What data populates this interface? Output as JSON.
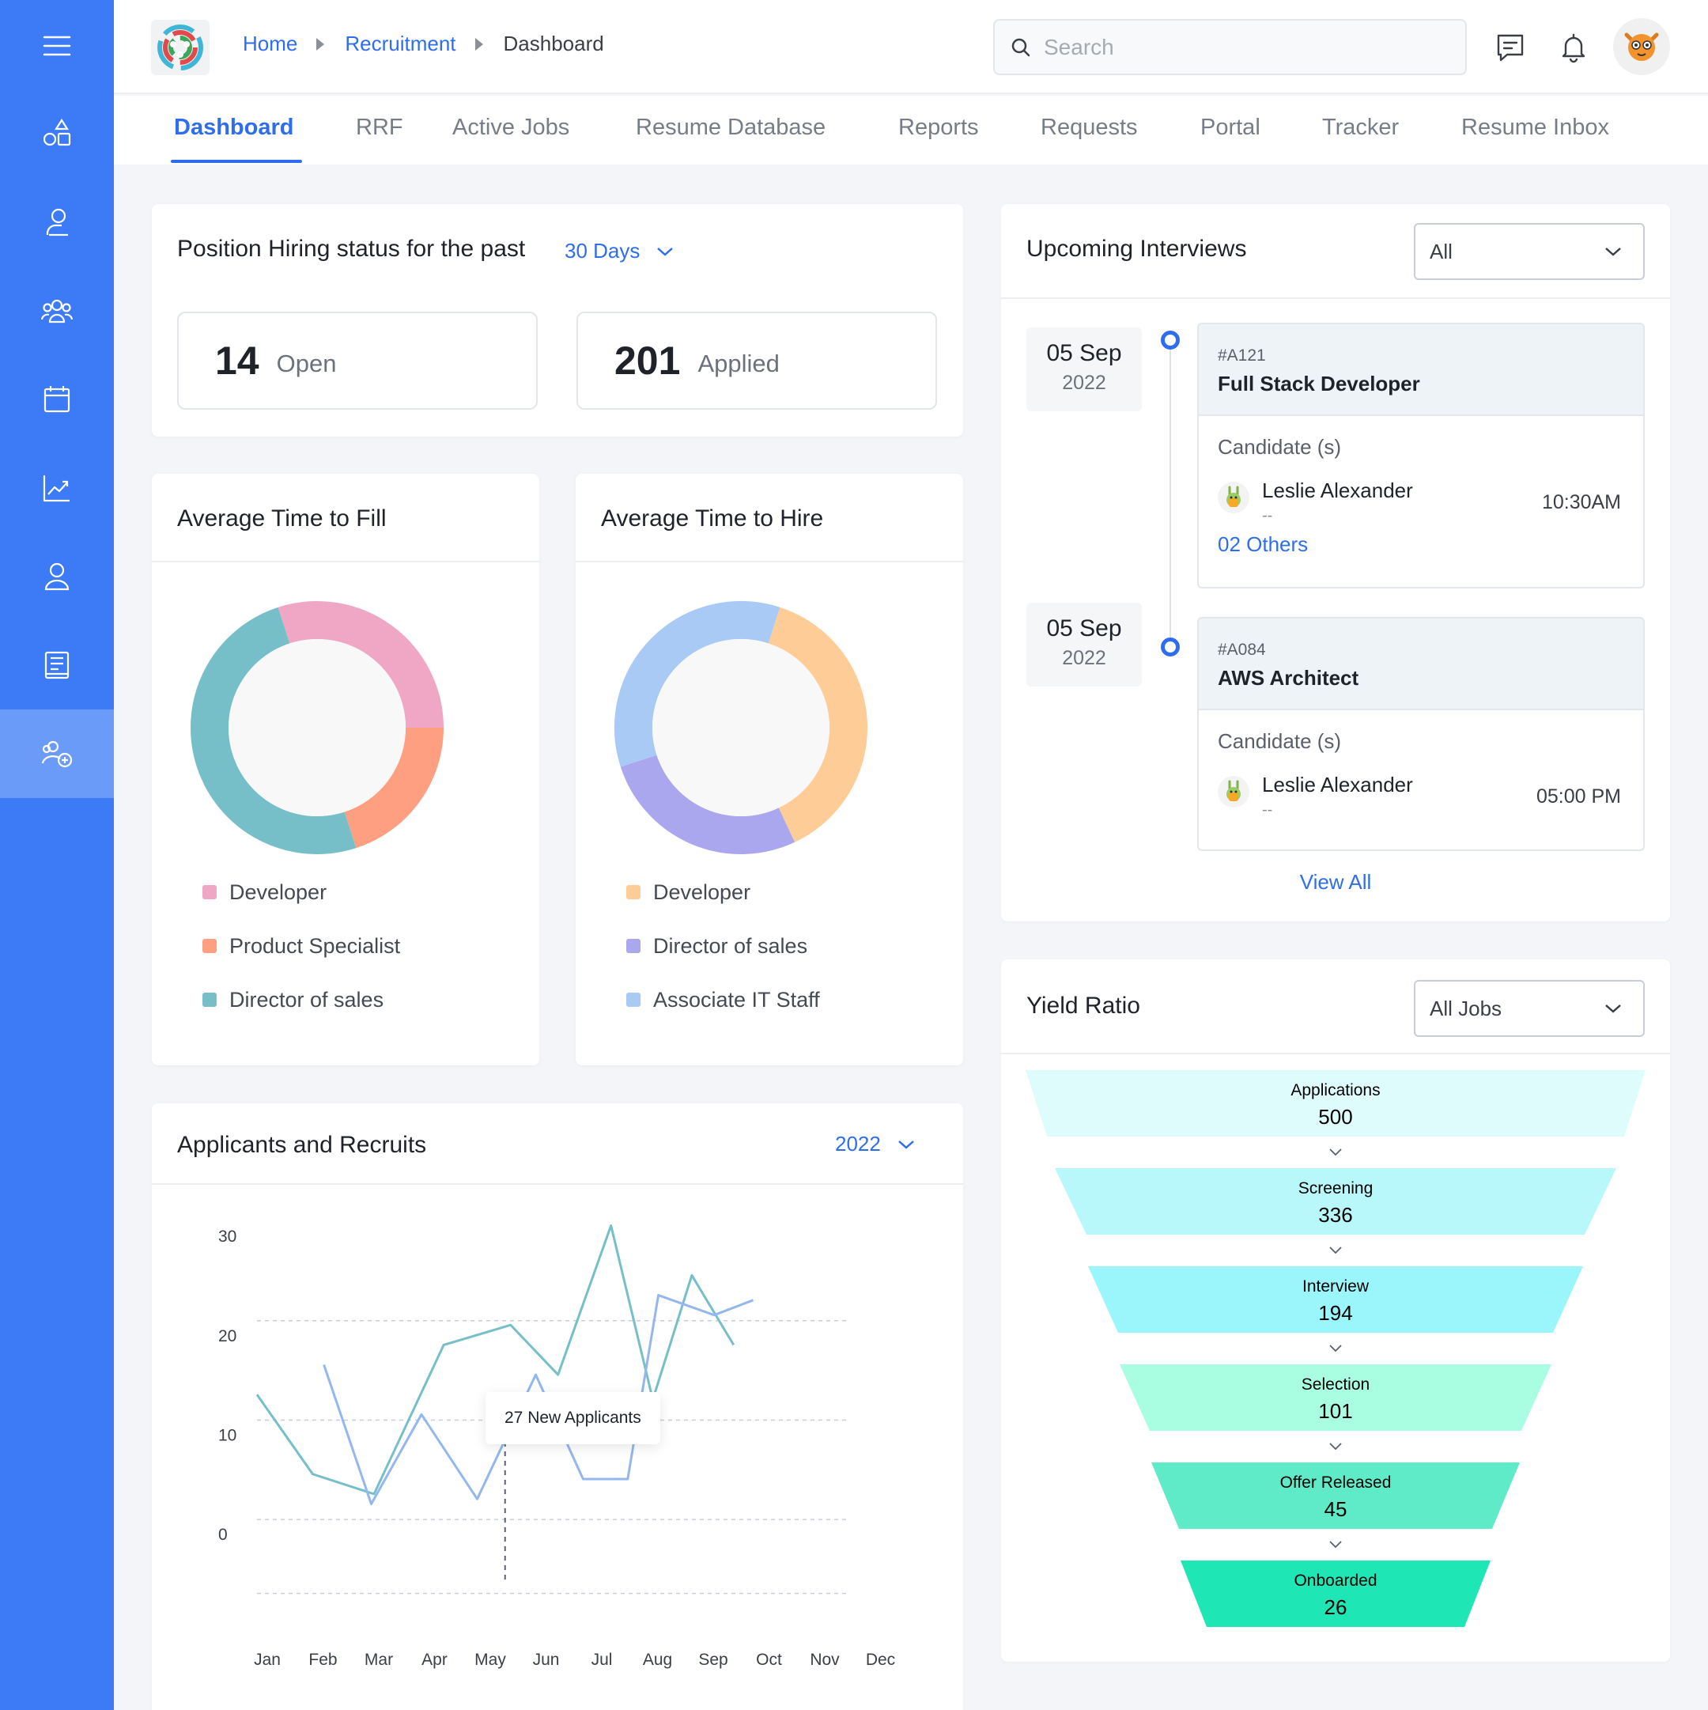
{
  "breadcrumb": [
    {
      "label": "Home"
    },
    {
      "label": "Recruitment"
    },
    {
      "label": "Dashboard"
    }
  ],
  "search": {
    "placeholder": "Search",
    "value": ""
  },
  "tabs": [
    {
      "label": "Dashboard",
      "active": true
    },
    {
      "label": "RRF"
    },
    {
      "label": "Active Jobs"
    },
    {
      "label": "Resume Database"
    },
    {
      "label": "Reports"
    },
    {
      "label": "Requests"
    },
    {
      "label": "Portal"
    },
    {
      "label": "Tracker"
    },
    {
      "label": "Resume Inbox"
    }
  ],
  "sidebar": {
    "items": [
      {
        "icon": "menu-icon"
      },
      {
        "icon": "shapes-icon"
      },
      {
        "icon": "user-icon"
      },
      {
        "icon": "users-group-icon"
      },
      {
        "icon": "calendar-icon"
      },
      {
        "icon": "chart-icon"
      },
      {
        "icon": "profile-icon"
      },
      {
        "icon": "book-icon"
      },
      {
        "icon": "add-users-icon",
        "active": true
      }
    ]
  },
  "hiring_status": {
    "title": "Position Hiring status for the past",
    "period": "30 Days",
    "open": {
      "value": "14",
      "label": "Open"
    },
    "applied": {
      "value": "201",
      "label": "Applied"
    }
  },
  "time_to_fill": {
    "title": "Average Time to Fill",
    "legend": [
      {
        "label": "Developer",
        "color": "#efa7c5"
      },
      {
        "label": "Product Specialist",
        "color": "#fd9f80"
      },
      {
        "label": "Director of sales",
        "color": "#76bfc9"
      }
    ]
  },
  "time_to_hire": {
    "title": "Average Time to Hire",
    "legend": [
      {
        "label": "Developer",
        "color": "#fecc96"
      },
      {
        "label": "Director of sales",
        "color": "#aba7ef"
      },
      {
        "label": "Associate IT Staff",
        "color": "#a9caf4"
      }
    ]
  },
  "applicants": {
    "title": "Applicants and Recruits",
    "year": "2022",
    "tooltip": "27 New Applicants"
  },
  "upcoming": {
    "title": "Upcoming Interviews",
    "filter": "All",
    "candidates_label": "Candidate (s)",
    "interviews": [
      {
        "day": "05 Sep",
        "year": "2022",
        "id": "#A121",
        "role": "Full Stack Developer",
        "candidate": "Leslie Alexander",
        "sub": "--",
        "time": "10:30AM",
        "others": "02 Others"
      },
      {
        "day": "05 Sep",
        "year": "2022",
        "id": "#A084",
        "role": "AWS Architect",
        "candidate": "Leslie Alexander",
        "sub": "--",
        "time": "05:00 PM"
      }
    ],
    "view_all": "View All"
  },
  "yield": {
    "title": "Yield Ratio",
    "filter": "All Jobs",
    "stages": [
      {
        "label": "Applications",
        "value": "500",
        "color": "#dffcfd"
      },
      {
        "label": "Screening",
        "value": "336",
        "color": "#b8f8fb"
      },
      {
        "label": "Interview",
        "value": "194",
        "color": "#9bf6fb"
      },
      {
        "label": "Selection",
        "value": "101",
        "color": "#a9fde0"
      },
      {
        "label": "Offer Released",
        "value": "45",
        "color": "#5feac8"
      },
      {
        "label": "Onboarded",
        "value": "26",
        "color": "#1ee6b4"
      }
    ]
  },
  "chart_data": [
    {
      "type": "pie",
      "title": "Average Time to Fill",
      "labels": [
        "Developer",
        "Product Specialist",
        "Director of sales"
      ],
      "values": [
        30,
        20,
        50
      ],
      "colors": [
        "#efa7c5",
        "#fd9f80",
        "#76bfc9"
      ]
    },
    {
      "type": "pie",
      "title": "Average Time to Hire",
      "labels": [
        "Developer",
        "Director of sales",
        "Associate IT Staff"
      ],
      "values": [
        38,
        27,
        35
      ],
      "colors": [
        "#fecc96",
        "#aba7ef",
        "#a9caf4"
      ]
    },
    {
      "type": "line",
      "title": "Applicants and Recruits",
      "categories": [
        "Jan",
        "Feb",
        "Mar",
        "Apr",
        "May",
        "Jun",
        "Jul",
        "Aug",
        "Sep",
        "Oct",
        "Nov",
        "Dec"
      ],
      "yticks": [
        0,
        10,
        20,
        30
      ],
      "ylim": [
        -5,
        32
      ],
      "grid": true,
      "series": [
        {
          "color": "#76bfc9",
          "points": [
            [
              0.0,
              14
            ],
            [
              1.0,
              6
            ],
            [
              2.1,
              4
            ],
            [
              3.35,
              19
            ],
            [
              4.55,
              21
            ],
            [
              5.4,
              16
            ],
            [
              6.35,
              31
            ],
            [
              7.1,
              13.5
            ],
            [
              7.8,
              26
            ],
            [
              8.55,
              19
            ]
          ]
        },
        {
          "color": "#93b7ee",
          "points": [
            [
              1.2,
              17
            ],
            [
              2.05,
              3
            ],
            [
              2.95,
              12
            ],
            [
              3.95,
              3.5
            ],
            [
              5.0,
              16
            ],
            [
              5.85,
              5.5
            ],
            [
              6.65,
              5.5
            ],
            [
              7.2,
              24
            ],
            [
              8.2,
              22
            ],
            [
              8.9,
              23.5
            ]
          ]
        }
      ],
      "annotation": {
        "x": 4.45,
        "label": "27 New Applicants"
      }
    },
    {
      "type": "bar",
      "title": "Yield Ratio",
      "categories": [
        "Applications",
        "Screening",
        "Interview",
        "Selection",
        "Offer Released",
        "Onboarded"
      ],
      "values": [
        500,
        336,
        194,
        101,
        45,
        26
      ]
    }
  ]
}
